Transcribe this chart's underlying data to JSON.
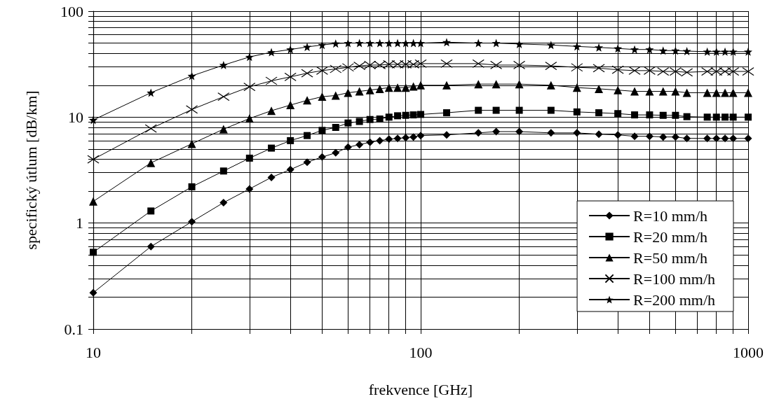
{
  "chart_data": {
    "type": "line",
    "xlabel": "frekvence [GHz]",
    "ylabel": "specifický útlum [dB/km]",
    "log": "xy",
    "grid": true,
    "legend": "bottom right",
    "x": [
      10,
      15,
      20,
      25,
      30,
      35,
      40,
      45,
      50,
      55,
      60,
      65,
      70,
      75,
      80,
      85,
      90,
      95,
      100,
      120,
      150,
      170,
      200,
      250,
      300,
      350,
      400,
      450,
      500,
      550,
      600,
      650,
      750,
      800,
      850,
      900,
      1000
    ],
    "xlim": [
      10,
      1000
    ],
    "ylim": [
      0.1,
      100
    ],
    "xticks": [
      10,
      {
        "value": 20,
        "label": null
      },
      {
        "value": 30,
        "label": null
      },
      {
        "value": 40,
        "label": null
      },
      {
        "value": 50,
        "label": null
      },
      {
        "value": 60,
        "label": null
      },
      {
        "value": 70,
        "label": null
      },
      {
        "value": 80,
        "label": null
      },
      {
        "value": 90,
        "label": null
      },
      100,
      {
        "value": 200,
        "label": null
      },
      {
        "value": 300,
        "label": null
      },
      {
        "value": 400,
        "label": null
      },
      {
        "value": 500,
        "label": null
      },
      {
        "value": 600,
        "label": null
      },
      {
        "value": 700,
        "label": null
      },
      {
        "value": 800,
        "label": null
      },
      {
        "value": 900,
        "label": null
      },
      1000
    ],
    "yticks": [
      0.1,
      {
        "value": 0.2,
        "label": null
      },
      {
        "value": 0.3,
        "label": null
      },
      {
        "value": 0.4,
        "label": null
      },
      {
        "value": 0.5,
        "label": null
      },
      {
        "value": 0.6,
        "label": null
      },
      {
        "value": 0.7,
        "label": null
      },
      {
        "value": 0.8,
        "label": null
      },
      {
        "value": 0.9,
        "label": null
      },
      1,
      {
        "value": 2,
        "label": null
      },
      {
        "value": 3,
        "label": null
      },
      {
        "value": 4,
        "label": null
      },
      {
        "value": 5,
        "label": null
      },
      {
        "value": 6,
        "label": null
      },
      {
        "value": 7,
        "label": null
      },
      {
        "value": 8,
        "label": null
      },
      {
        "value": 9,
        "label": null
      },
      10,
      {
        "value": 20,
        "label": null
      },
      {
        "value": 30,
        "label": null
      },
      {
        "value": 40,
        "label": null
      },
      {
        "value": 50,
        "label": null
      },
      {
        "value": 60,
        "label": null
      },
      {
        "value": 70,
        "label": null
      },
      {
        "value": 80,
        "label": null
      },
      {
        "value": 90,
        "label": null
      },
      100
    ],
    "series": [
      {
        "name": "R=10 mm/h",
        "color": "#000000",
        "marker": "diamond",
        "values": [
          0.22,
          0.6,
          1.03,
          1.56,
          2.1,
          2.7,
          3.2,
          3.75,
          4.2,
          4.6,
          5.2,
          5.5,
          5.8,
          6,
          6.2,
          6.3,
          6.4,
          6.5,
          6.7,
          6.8,
          7.1,
          7.3,
          7.3,
          7.1,
          7.1,
          6.9,
          6.8,
          6.6,
          6.6,
          6.5,
          6.5,
          6.3,
          6.3,
          6.3,
          6.3,
          6.3,
          6.3
        ]
      },
      {
        "name": "R=20 mm/h",
        "color": "#000000",
        "marker": "square",
        "values": [
          0.53,
          1.3,
          2.2,
          3.1,
          4.1,
          5.1,
          6,
          6.7,
          7.5,
          8,
          8.8,
          9.1,
          9.5,
          9.6,
          10,
          10.3,
          10.4,
          10.5,
          10.6,
          11,
          11.6,
          11.6,
          11.6,
          11.6,
          11.2,
          11,
          10.8,
          10.5,
          10.5,
          10.4,
          10.4,
          10.1,
          10,
          10,
          10,
          10,
          10
        ]
      },
      {
        "name": "R=50 mm/h",
        "color": "#000000",
        "marker": "triangle",
        "values": [
          1.6,
          3.7,
          5.6,
          7.7,
          9.7,
          11.5,
          13,
          14.4,
          15.6,
          16,
          17,
          17.5,
          18,
          18.5,
          19,
          19,
          19,
          19.5,
          20,
          20,
          20.5,
          20.5,
          20.5,
          20,
          19,
          18.5,
          18,
          17.5,
          17.5,
          17.5,
          17.5,
          17,
          17,
          17,
          17,
          17,
          17
        ]
      },
      {
        "name": "R=100 mm/h",
        "color": "#000000",
        "marker": "cross",
        "values": [
          4,
          7.8,
          11.8,
          15.6,
          19.3,
          22,
          24,
          26,
          27.5,
          28.5,
          29.5,
          30.5,
          31,
          31,
          31.5,
          31.5,
          31.5,
          31.5,
          32,
          32,
          32,
          31,
          31,
          30.5,
          29.5,
          29,
          28,
          27.5,
          27.5,
          27,
          27,
          26.5,
          27,
          27,
          27,
          27,
          27
        ]
      },
      {
        "name": "R=200 mm/h",
        "color": "#000000",
        "marker": "star",
        "values": [
          9.4,
          17,
          24.5,
          31,
          37,
          41,
          43.5,
          46,
          48,
          49.5,
          50,
          50,
          50,
          50,
          50,
          50,
          50,
          50,
          50,
          51,
          50,
          50,
          49,
          48,
          46.5,
          45.5,
          44.5,
          43.5,
          43.5,
          42.5,
          42.5,
          42,
          41.5,
          41.5,
          41.5,
          41.5,
          41.5
        ]
      }
    ]
  }
}
